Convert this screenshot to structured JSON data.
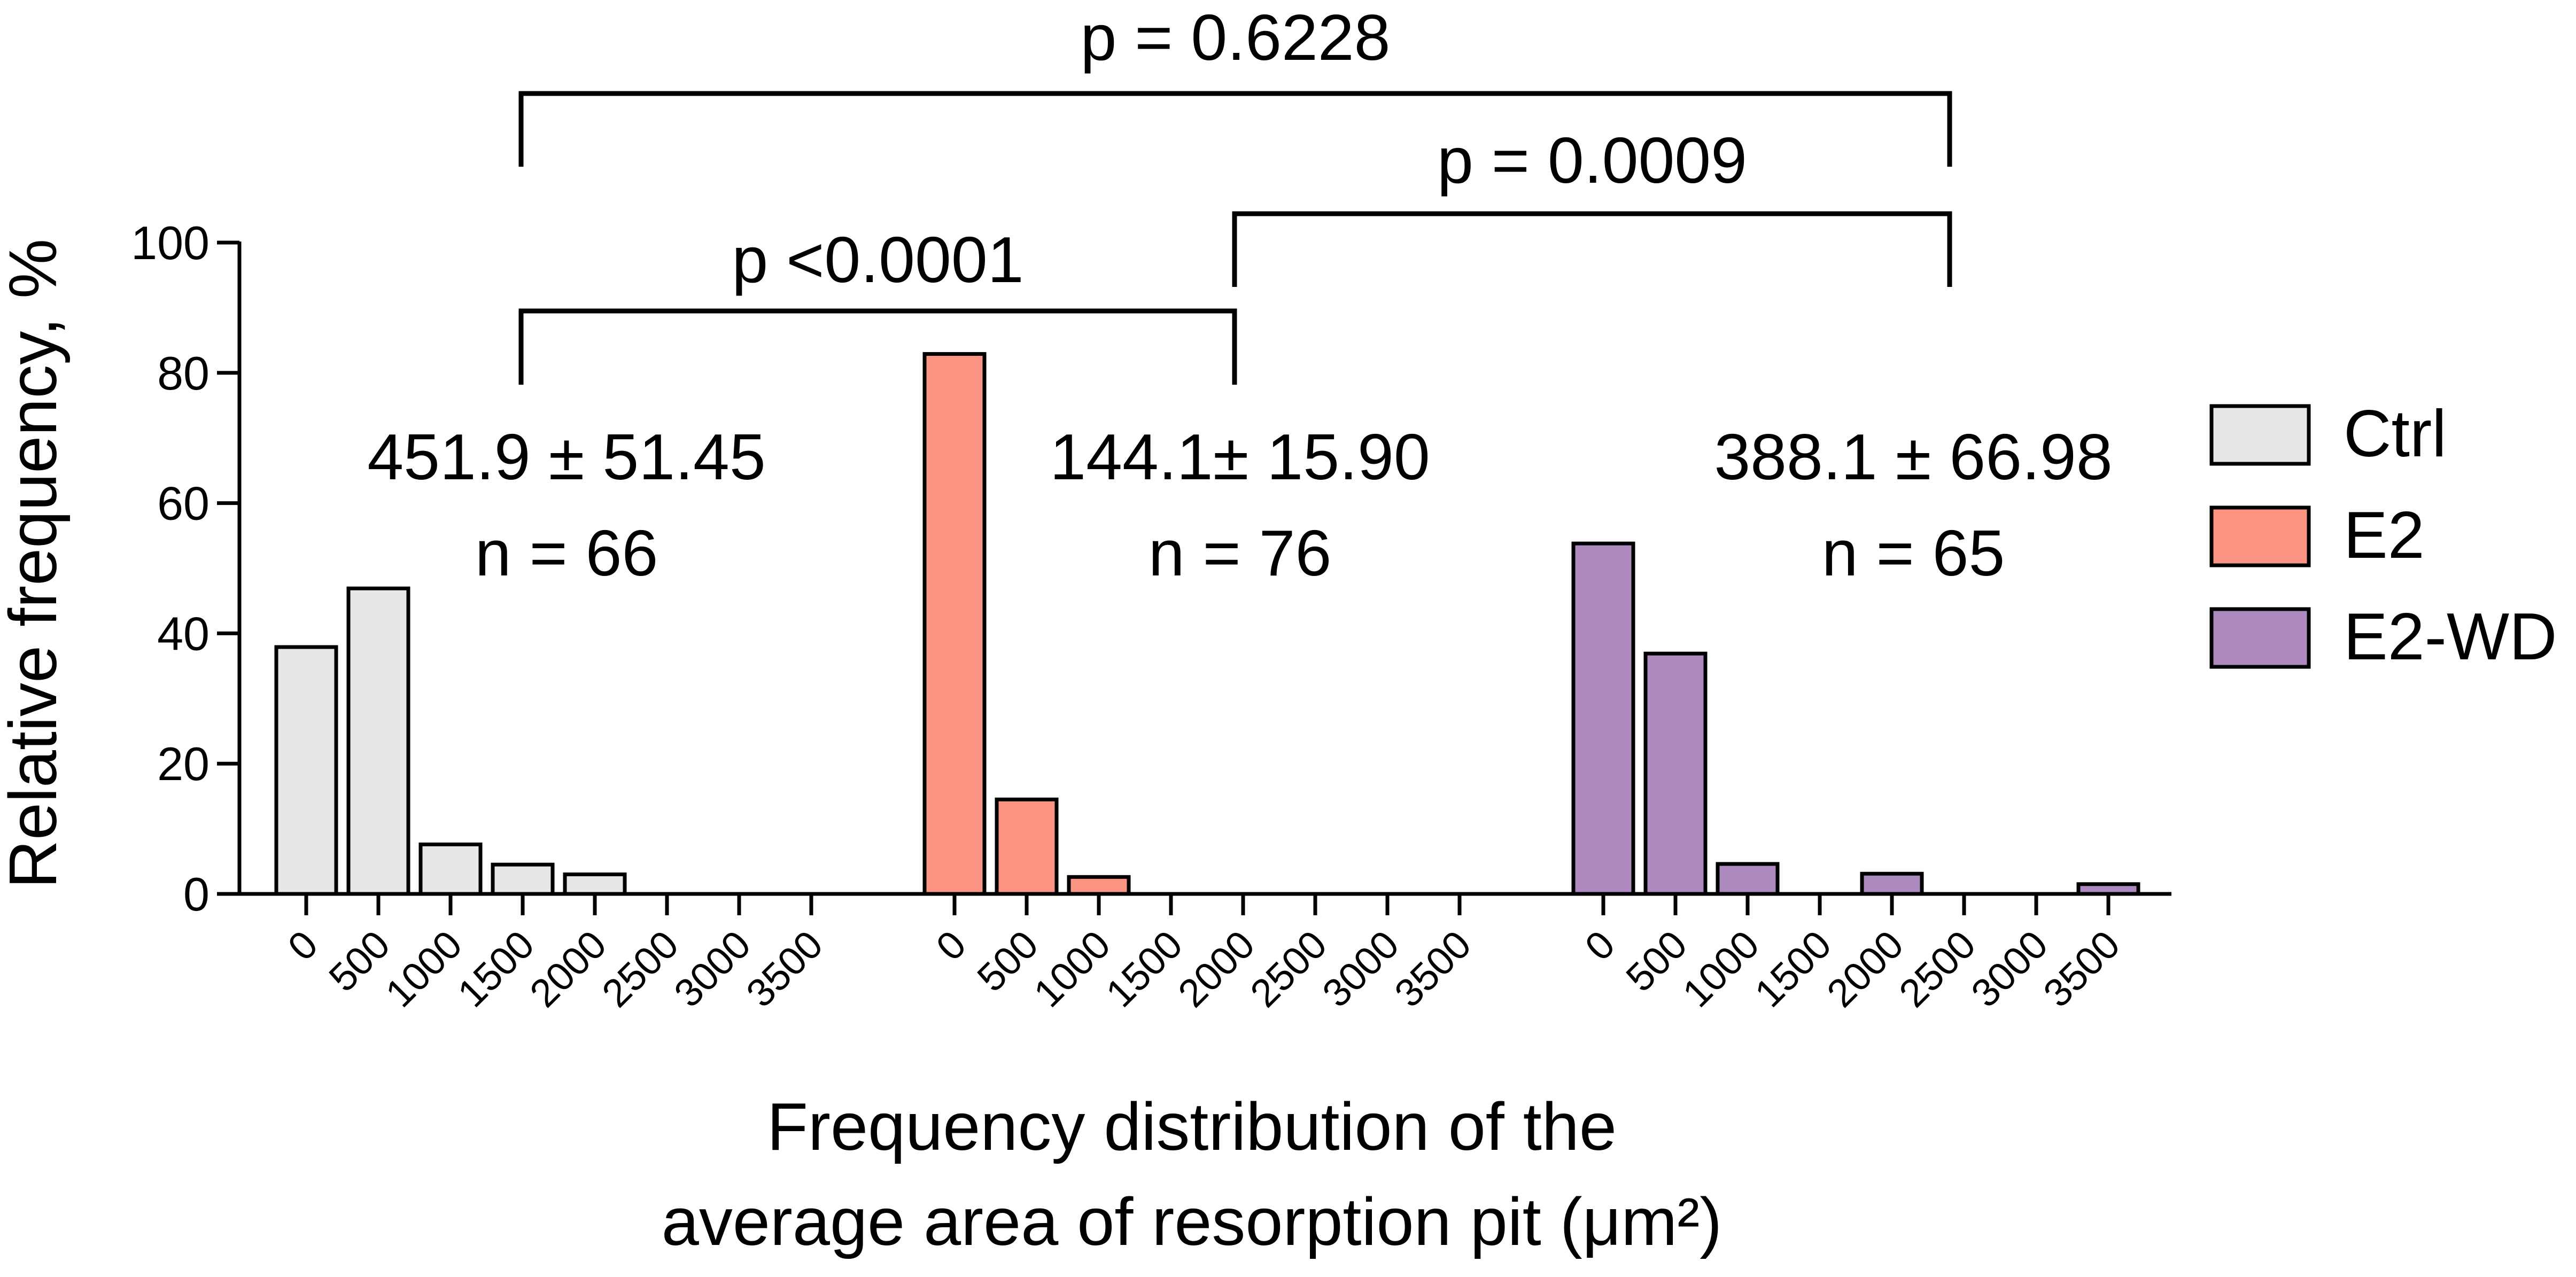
{
  "chart_data": {
    "type": "bar",
    "ylabel": "Relative frequency, %",
    "xlabel_lines": [
      "Frequency distribution of the",
      "average area of resorption pit (μm²)"
    ],
    "ylim": [
      0,
      100
    ],
    "yticks": [
      0,
      20,
      40,
      60,
      80,
      100
    ],
    "categories": [
      "0",
      "500",
      "1000",
      "1500",
      "2000",
      "2500",
      "3000",
      "3500"
    ],
    "series": [
      {
        "name": "Ctrl",
        "color": "#e6e7e8",
        "values": [
          37.9,
          46.9,
          7.6,
          4.5,
          3.0,
          0,
          0,
          0
        ],
        "summary_lines": [
          "451.9 ± 51.45",
          "n = 66"
        ]
      },
      {
        "name": "E2",
        "color": "#fb9482",
        "values": [
          82.9,
          14.5,
          2.6,
          0,
          0,
          0,
          0,
          0
        ],
        "summary_lines": [
          "144.1± 15.90",
          "n = 76"
        ]
      },
      {
        "name": "E2-WD",
        "color": "#ac89bf",
        "values": [
          53.8,
          36.9,
          4.6,
          0,
          3.1,
          0,
          0,
          1.5
        ],
        "summary_lines": [
          "388.1 ± 66.98",
          "n = 65"
        ]
      }
    ],
    "comparisons": [
      {
        "between": [
          "Ctrl",
          "E2"
        ],
        "label": "p <0.0001"
      },
      {
        "between": [
          "E2",
          "E2-WD"
        ],
        "label": "p = 0.0009"
      },
      {
        "between": [
          "Ctrl",
          "E2-WD"
        ],
        "label": "p = 0.6228"
      }
    ],
    "legend_position": "right",
    "grid": false
  }
}
